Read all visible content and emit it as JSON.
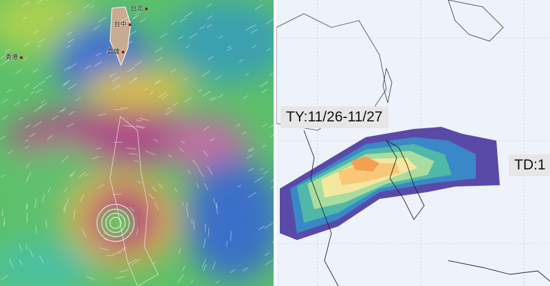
{
  "left_map": {
    "cities": [
      {
        "name": "台北"
      },
      {
        "name": "台中"
      },
      {
        "name": "高雄"
      },
      {
        "name": "香港"
      }
    ],
    "colors": {
      "calm": "#3a6fd0",
      "moderate": "#4cc870",
      "strong": "#e0c040",
      "storm": "#b04080"
    }
  },
  "right_map": {
    "labels": {
      "ty": "TY:11/26-11/27",
      "td": "TD:1"
    },
    "colors": [
      "#5a4aa8",
      "#3a88c8",
      "#50b8a8",
      "#a8dca0",
      "#f4e8a0",
      "#f8c878",
      "#f4a050"
    ]
  }
}
